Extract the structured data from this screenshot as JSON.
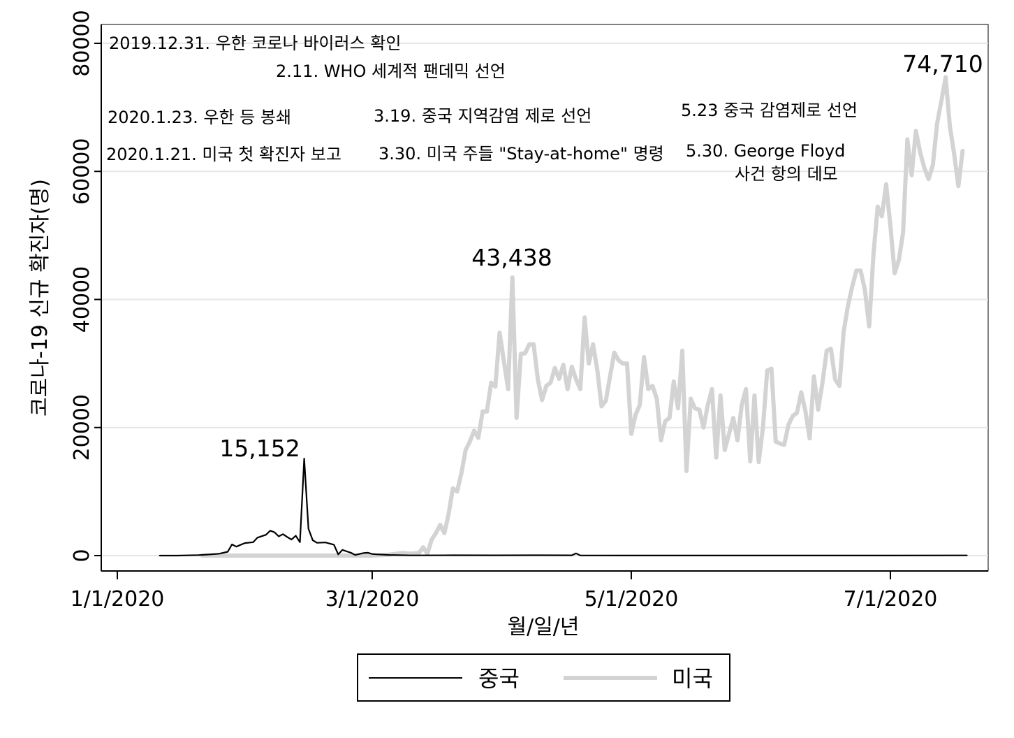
{
  "chart_data": {
    "type": "line",
    "xlabel": "월/일/년",
    "ylabel": "코로나-19 신규 확진자(명)",
    "ylim": [
      0,
      80000
    ],
    "yticks": [
      0,
      20000,
      40000,
      60000,
      80000
    ],
    "ytick_labels": [
      "0",
      "20000",
      "40000",
      "60000",
      "80000"
    ],
    "xlim": [
      "2019-12-28",
      "2020-07-25"
    ],
    "xticks": [
      "2020-01-01",
      "2020-03-01",
      "2020-05-01",
      "2020-07-01"
    ],
    "xtick_labels": [
      "1/1/2020",
      "3/1/2020",
      "5/1/2020",
      "7/1/2020"
    ],
    "grid": true,
    "legend_position": "bottom",
    "series": [
      {
        "name": "중국",
        "color": "#000000",
        "points": [
          [
            "2020-01-11",
            0
          ],
          [
            "2020-01-15",
            0
          ],
          [
            "2020-01-20",
            80
          ],
          [
            "2020-01-22",
            150
          ],
          [
            "2020-01-25",
            300
          ],
          [
            "2020-01-27",
            600
          ],
          [
            "2020-01-28",
            1750
          ],
          [
            "2020-01-29",
            1400
          ],
          [
            "2020-01-31",
            1950
          ],
          [
            "2020-02-02",
            2100
          ],
          [
            "2020-02-03",
            2800
          ],
          [
            "2020-02-05",
            3250
          ],
          [
            "2020-02-06",
            3900
          ],
          [
            "2020-02-07",
            3650
          ],
          [
            "2020-02-08",
            3000
          ],
          [
            "2020-02-09",
            3350
          ],
          [
            "2020-02-10",
            2900
          ],
          [
            "2020-02-11",
            2500
          ],
          [
            "2020-02-12",
            3100
          ],
          [
            "2020-02-13",
            2100
          ],
          [
            "2020-02-14",
            15152
          ],
          [
            "2020-02-15",
            4200
          ],
          [
            "2020-02-16",
            2400
          ],
          [
            "2020-02-17",
            2000
          ],
          [
            "2020-02-19",
            2050
          ],
          [
            "2020-02-21",
            1700
          ],
          [
            "2020-02-22",
            200
          ],
          [
            "2020-02-23",
            900
          ],
          [
            "2020-02-24",
            650
          ],
          [
            "2020-02-25",
            450
          ],
          [
            "2020-02-26",
            100
          ],
          [
            "2020-02-28",
            400
          ],
          [
            "2020-02-29",
            450
          ],
          [
            "2020-03-01",
            250
          ],
          [
            "2020-03-02",
            200
          ],
          [
            "2020-03-05",
            100
          ],
          [
            "2020-03-10",
            30
          ],
          [
            "2020-03-20",
            50
          ],
          [
            "2020-03-30",
            40
          ],
          [
            "2020-04-10",
            60
          ],
          [
            "2020-04-17",
            40
          ],
          [
            "2020-04-18",
            350
          ],
          [
            "2020-04-19",
            20
          ],
          [
            "2020-05-01",
            10
          ],
          [
            "2020-06-01",
            10
          ],
          [
            "2020-07-01",
            10
          ],
          [
            "2020-07-19",
            30
          ]
        ]
      },
      {
        "name": "미국",
        "color": "#d3d3d3",
        "points": [
          [
            "2020-01-21",
            0
          ],
          [
            "2020-02-10",
            0
          ],
          [
            "2020-02-25",
            0
          ],
          [
            "2020-03-01",
            0
          ],
          [
            "2020-03-05",
            150
          ],
          [
            "2020-03-08",
            400
          ],
          [
            "2020-03-10",
            300
          ],
          [
            "2020-03-12",
            400
          ],
          [
            "2020-03-13",
            1300
          ],
          [
            "2020-03-14",
            300
          ],
          [
            "2020-03-15",
            2500
          ],
          [
            "2020-03-16",
            3500
          ],
          [
            "2020-03-17",
            4800
          ],
          [
            "2020-03-18",
            3500
          ],
          [
            "2020-03-19",
            6500
          ],
          [
            "2020-03-20",
            10500
          ],
          [
            "2020-03-21",
            10000
          ],
          [
            "2020-03-22",
            12900
          ],
          [
            "2020-03-23",
            16500
          ],
          [
            "2020-03-24",
            17800
          ],
          [
            "2020-03-25",
            19500
          ],
          [
            "2020-03-26",
            18400
          ],
          [
            "2020-03-27",
            22500
          ],
          [
            "2020-03-28",
            22500
          ],
          [
            "2020-03-29",
            27000
          ],
          [
            "2020-03-30",
            26400
          ],
          [
            "2020-03-31",
            34800
          ],
          [
            "2020-04-02",
            26000
          ],
          [
            "2020-04-03",
            43438
          ],
          [
            "2020-04-04",
            21500
          ],
          [
            "2020-04-05",
            31500
          ],
          [
            "2020-04-06",
            31600
          ],
          [
            "2020-04-07",
            33000
          ],
          [
            "2020-04-08",
            33000
          ],
          [
            "2020-04-09",
            27500
          ],
          [
            "2020-04-10",
            24300
          ],
          [
            "2020-04-11",
            26500
          ],
          [
            "2020-04-12",
            27000
          ],
          [
            "2020-04-13",
            29300
          ],
          [
            "2020-04-14",
            27600
          ],
          [
            "2020-04-15",
            29800
          ],
          [
            "2020-04-16",
            26000
          ],
          [
            "2020-04-17",
            29500
          ],
          [
            "2020-04-18",
            27500
          ],
          [
            "2020-04-19",
            26000
          ],
          [
            "2020-04-20",
            37200
          ],
          [
            "2020-04-21",
            30000
          ],
          [
            "2020-04-22",
            33000
          ],
          [
            "2020-04-23",
            29000
          ],
          [
            "2020-04-24",
            23300
          ],
          [
            "2020-04-25",
            24200
          ],
          [
            "2020-04-26",
            28000
          ],
          [
            "2020-04-27",
            31700
          ],
          [
            "2020-04-28",
            30500
          ],
          [
            "2020-04-29",
            30000
          ],
          [
            "2020-04-30",
            30000
          ],
          [
            "2020-05-01",
            19000
          ],
          [
            "2020-05-02",
            22000
          ],
          [
            "2020-05-03",
            23500
          ],
          [
            "2020-05-04",
            31000
          ],
          [
            "2020-05-05",
            26000
          ],
          [
            "2020-05-06",
            26500
          ],
          [
            "2020-05-07",
            24500
          ],
          [
            "2020-05-08",
            18000
          ],
          [
            "2020-05-09",
            21000
          ],
          [
            "2020-05-10",
            21500
          ],
          [
            "2020-05-11",
            27200
          ],
          [
            "2020-05-12",
            23000
          ],
          [
            "2020-05-13",
            32000
          ],
          [
            "2020-05-14",
            13200
          ],
          [
            "2020-05-15",
            24500
          ],
          [
            "2020-05-16",
            23000
          ],
          [
            "2020-05-17",
            22800
          ],
          [
            "2020-05-18",
            20000
          ],
          [
            "2020-05-19",
            23500
          ],
          [
            "2020-05-20",
            26000
          ],
          [
            "2020-05-21",
            15300
          ],
          [
            "2020-05-22",
            25000
          ],
          [
            "2020-05-23",
            16500
          ],
          [
            "2020-05-24",
            19000
          ],
          [
            "2020-05-25",
            21500
          ],
          [
            "2020-05-26",
            18000
          ],
          [
            "2020-05-27",
            23500
          ],
          [
            "2020-05-28",
            26000
          ],
          [
            "2020-05-29",
            14700
          ],
          [
            "2020-05-30",
            25000
          ],
          [
            "2020-05-31",
            14600
          ],
          [
            "2020-06-01",
            20000
          ],
          [
            "2020-06-02",
            28900
          ],
          [
            "2020-06-03",
            29200
          ],
          [
            "2020-06-04",
            17800
          ],
          [
            "2020-06-05",
            17500
          ],
          [
            "2020-06-06",
            17300
          ],
          [
            "2020-06-07",
            20400
          ],
          [
            "2020-06-08",
            21800
          ],
          [
            "2020-06-09",
            22300
          ],
          [
            "2020-06-10",
            25500
          ],
          [
            "2020-06-11",
            22500
          ],
          [
            "2020-06-12",
            18300
          ],
          [
            "2020-06-13",
            28000
          ],
          [
            "2020-06-14",
            22800
          ],
          [
            "2020-06-15",
            27000
          ],
          [
            "2020-06-16",
            32000
          ],
          [
            "2020-06-17",
            32300
          ],
          [
            "2020-06-18",
            27500
          ],
          [
            "2020-06-19",
            26500
          ],
          [
            "2020-06-20",
            35000
          ],
          [
            "2020-06-21",
            39000
          ],
          [
            "2020-06-22",
            42000
          ],
          [
            "2020-06-23",
            44500
          ],
          [
            "2020-06-24",
            44500
          ],
          [
            "2020-06-25",
            41500
          ],
          [
            "2020-06-26",
            35800
          ],
          [
            "2020-06-27",
            47000
          ],
          [
            "2020-06-28",
            54500
          ],
          [
            "2020-06-29",
            53000
          ],
          [
            "2020-06-30",
            58000
          ],
          [
            "2020-07-01",
            51500
          ],
          [
            "2020-07-02",
            44100
          ],
          [
            "2020-07-03",
            46200
          ],
          [
            "2020-07-04",
            50500
          ],
          [
            "2020-07-05",
            65000
          ],
          [
            "2020-07-06",
            59400
          ],
          [
            "2020-07-07",
            66300
          ],
          [
            "2020-07-08",
            63000
          ],
          [
            "2020-07-09",
            60500
          ],
          [
            "2020-07-10",
            58800
          ],
          [
            "2020-07-11",
            61000
          ],
          [
            "2020-07-12",
            67500
          ],
          [
            "2020-07-13",
            71000
          ],
          [
            "2020-07-14",
            74710
          ],
          [
            "2020-07-15",
            67000
          ],
          [
            "2020-07-16",
            62800
          ],
          [
            "2020-07-17",
            57700
          ],
          [
            "2020-07-18",
            63200
          ]
        ]
      }
    ],
    "annotations": [
      "2019.12.31. 우한 코로나 바이러스 확인",
      "2.11. WHO 세계적 팬데믹 선언",
      "2020.1.23. 우한 등 봉쇄",
      "3.19. 중국 지역감염 제로 선언",
      "5.23 중국 감염제로 선언",
      "2020.1.21. 미국 첫 확진자 보고",
      "3.30. 미국 주들 \"Stay-at-home\" 명령",
      "5.30. George Floyd",
      "사건 항의 데모"
    ],
    "peak_labels": [
      {
        "series": "중국",
        "date": "2020-02-14",
        "text": "15,152"
      },
      {
        "series": "미국",
        "date": "2020-04-03",
        "text": "43,438"
      },
      {
        "series": "미국",
        "date": "2020-07-14",
        "text": "74,710"
      }
    ]
  }
}
